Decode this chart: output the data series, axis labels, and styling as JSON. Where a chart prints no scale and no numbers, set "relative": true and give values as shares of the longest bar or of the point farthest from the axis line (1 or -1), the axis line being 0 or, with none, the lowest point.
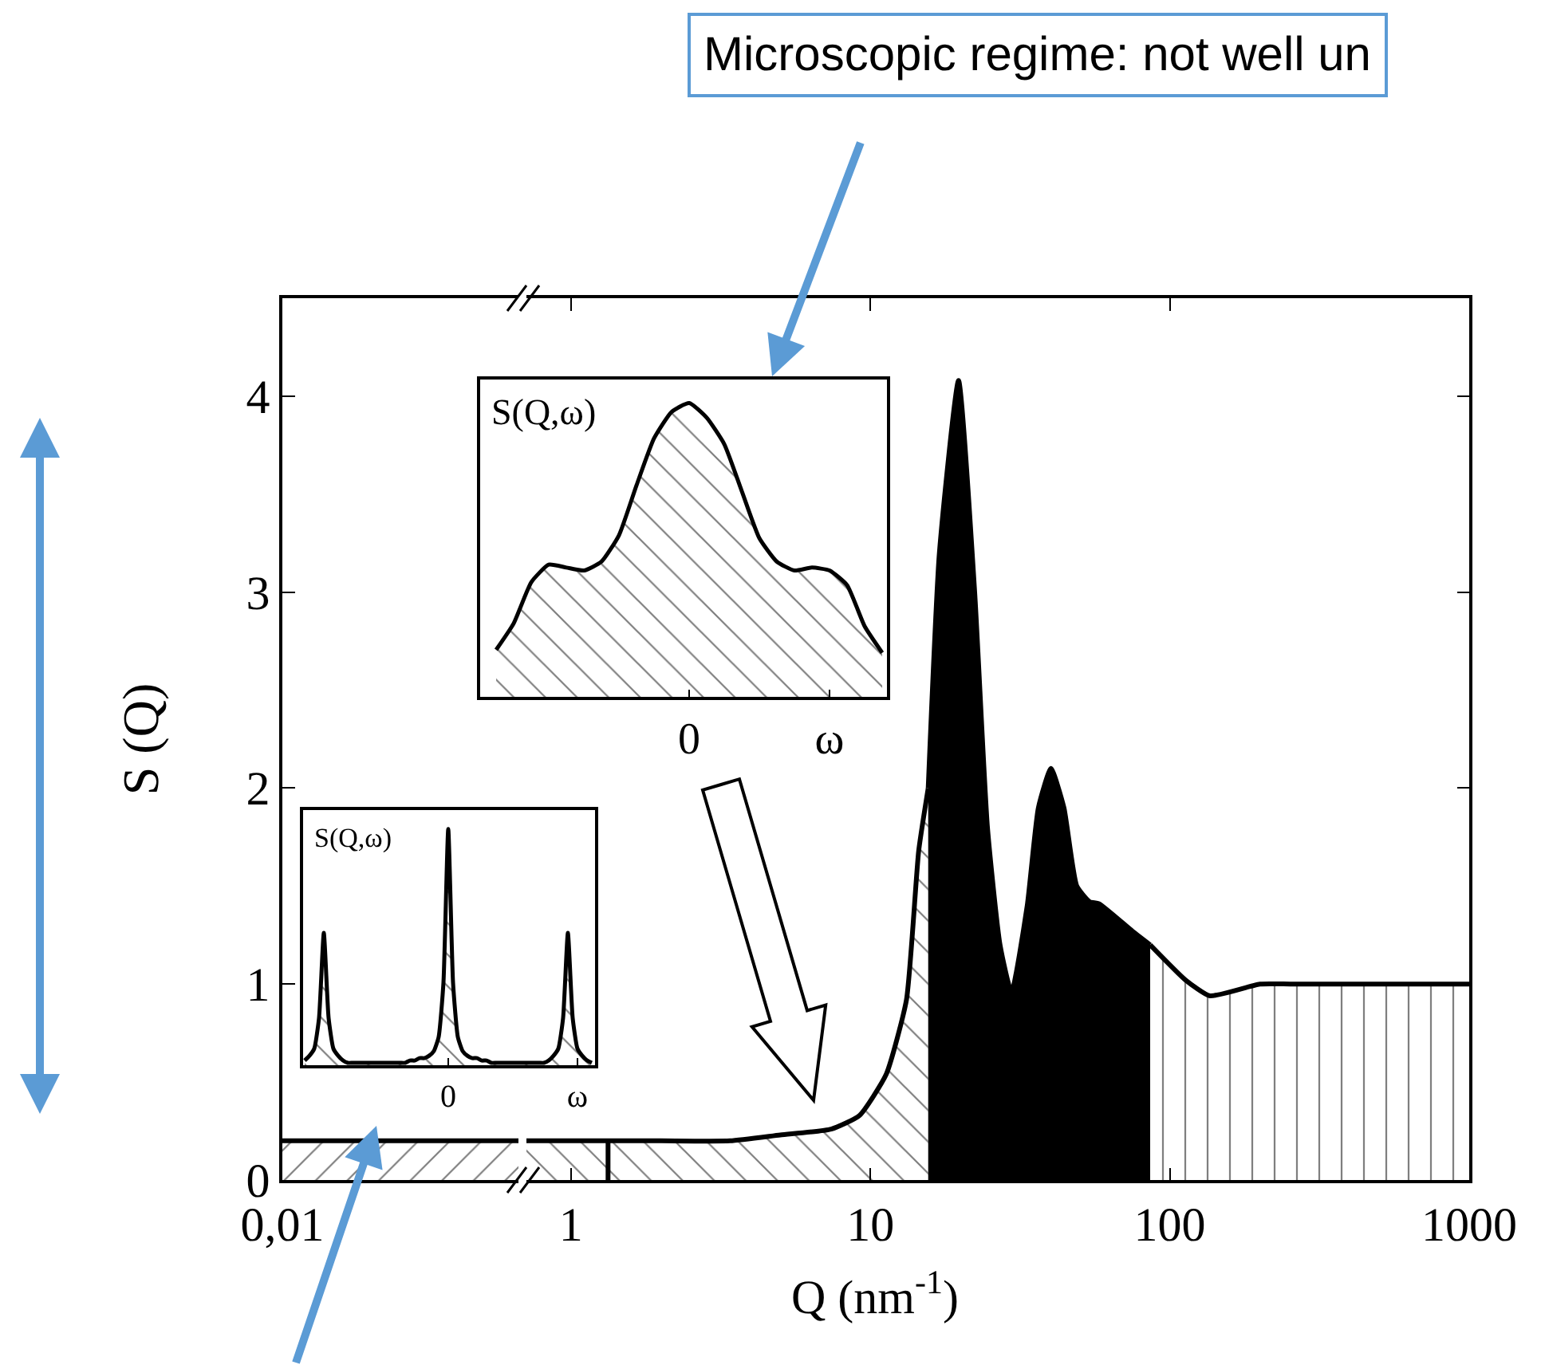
{
  "chart_data": [
    {
      "type": "area",
      "categories": [
        "0,01",
        null
      ],
      "ylim": [
        0,
        4.5
      ],
      "yticks": [
        0,
        1,
        2,
        3,
        4
      ],
      "ylabel": "S (Q)",
      "series": [
        {
          "color": "#000000",
          "values": [
            0.2,
            0.2
          ]
        }
      ]
    },
    {
      "type": "area",
      "log": "x",
      "xlim": [
        0.71,
        1000
      ],
      "xticks": [
        1,
        10,
        100,
        1000
      ],
      "ylim": [
        0,
        4.5
      ],
      "yticks": [
        0,
        1,
        2,
        3,
        4
      ],
      "tick_labels": "x",
      "xlabel": "Q (nm$^{-1}$)",
      "annotations": [
        "Microscopic regime: not well un"
      ],
      "series": [
        {
          "color": "#000000",
          "x": [
            0.71,
            1,
            1.33,
            2,
            3.4,
            5,
            7.4,
            9.2,
            11.3,
            13.2,
            14.5,
            15.6
          ],
          "values": [
            0.2,
            0.2,
            0.2,
            0.2,
            0.2,
            0.23,
            0.26,
            0.33,
            0.54,
            0.92,
            1.68,
            2.0
          ]
        },
        {
          "color": "#000000",
          "x": [
            15.6,
            17,
            19.7,
            22.3,
            24.6,
            27.1,
            29.6,
            33.4,
            36.4,
            40.1,
            44.3,
            48.9,
            54,
            58,
            75,
            86
          ],
          "values": [
            2.0,
            3.2,
            4.08,
            3.0,
            1.8,
            1.2,
            0.96,
            1.4,
            1.9,
            2.1,
            1.9,
            1.5,
            1.42,
            1.41,
            1.27,
            1.2
          ]
        },
        {
          "color": "#000000",
          "x": [
            86,
            113,
            136,
            200,
            255,
            500,
            1000
          ],
          "values": [
            1.2,
            1.02,
            0.94,
            1.0,
            1.0,
            1.0,
            1.0
          ]
        },
        {
          "type": "line",
          "color": "#000000",
          "x": [
            1.33,
            1.33
          ],
          "values": [
            0,
            0.2
          ]
        }
      ]
    },
    {
      "type": "area",
      "relative": true,
      "title": "S(Q,ω)",
      "tick_labels": "x",
      "categories": [
        null,
        null,
        null,
        null,
        null,
        null,
        null,
        null,
        null,
        null,
        null,
        null,
        null,
        null,
        null,
        null,
        null,
        null,
        null,
        null,
        null,
        null,
        null,
        null,
        null,
        null,
        null,
        null,
        null,
        null,
        "0",
        null,
        null,
        null,
        null,
        null,
        null,
        null,
        null,
        null,
        null,
        null,
        null,
        null,
        null,
        null,
        null,
        null,
        null,
        null,
        null,
        null,
        null,
        null,
        null,
        null,
        null,
        "ω",
        null,
        null,
        null
      ],
      "series": [
        {
          "color": "#000000",
          "values": [
            0.02,
            0.04,
            0.07,
            0.2,
            0.56,
            0.2,
            0.07,
            0.04,
            0.02,
            0.01,
            0.01,
            0.01,
            0.01,
            0.01,
            0.01,
            0.01,
            0.01,
            0.01,
            0.01,
            0.01,
            0.01,
            0.01,
            0.02,
            0.02,
            0.03,
            0.03,
            0.04,
            0.06,
            0.12,
            0.35,
            1,
            0.35,
            0.12,
            0.06,
            0.04,
            0.03,
            0.03,
            0.02,
            0.02,
            0.01,
            0.01,
            0.01,
            0.01,
            0.01,
            0.01,
            0.01,
            0.01,
            0.01,
            0.01,
            0.01,
            0.01,
            0.02,
            0.04,
            0.07,
            0.2,
            0.56,
            0.2,
            0.07,
            0.04,
            0.02,
            0.01
          ]
        }
      ]
    },
    {
      "type": "area",
      "relative": true,
      "title": "S(Q,ω)",
      "tick_labels": "x",
      "categories": [
        null,
        null,
        null,
        null,
        null,
        null,
        null,
        null,
        null,
        null,
        null,
        "0",
        null,
        null,
        null,
        null,
        null,
        null,
        null,
        "ω",
        null,
        null,
        null
      ],
      "series": [
        {
          "color": "#000000",
          "values": [
            0.16,
            0.25,
            0.39,
            0.45,
            0.44,
            0.43,
            0.46,
            0.55,
            0.72,
            0.88,
            0.97,
            1,
            0.95,
            0.86,
            0.7,
            0.54,
            0.46,
            0.43,
            0.44,
            0.43,
            0.38,
            0.24,
            0.15
          ]
        }
      ]
    }
  ]
}
